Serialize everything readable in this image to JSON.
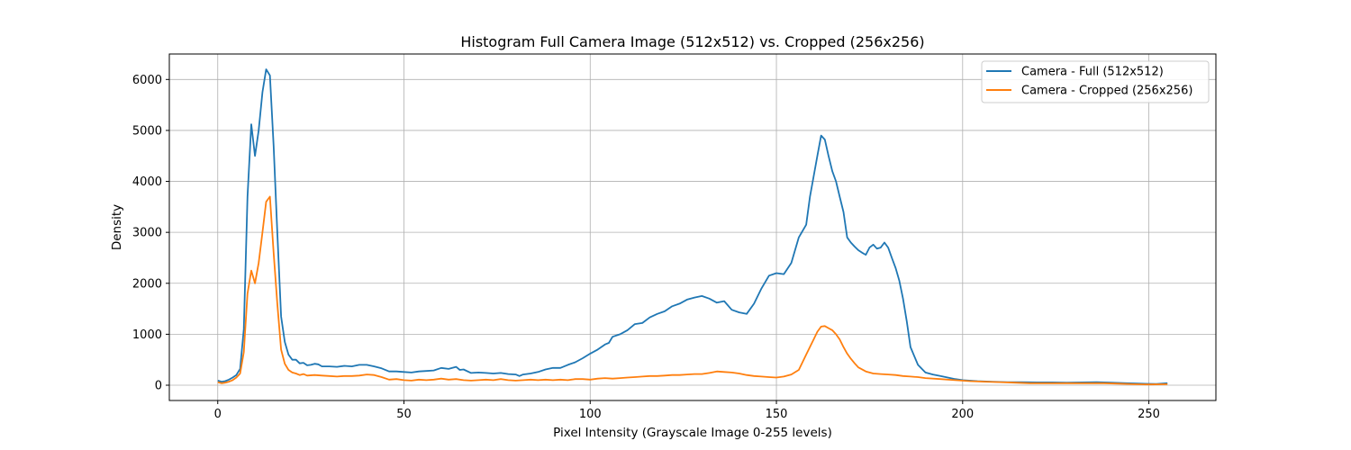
{
  "chart_data": {
    "type": "line",
    "title": "Histogram Full Camera Image (512x512) vs. Cropped (256x256)",
    "xlabel": "Pixel Intensity (Grayscale Image 0-255 levels)",
    "ylabel": "Density",
    "xlim": [
      -13,
      268
    ],
    "ylim": [
      -300,
      6500
    ],
    "xticks": [
      0,
      50,
      100,
      150,
      200,
      250
    ],
    "yticks": [
      0,
      1000,
      2000,
      3000,
      4000,
      5000,
      6000
    ],
    "grid": true,
    "legend_position": "top-right",
    "series": [
      {
        "name": "Camera - Full (512x512)",
        "color": "#1f77b4",
        "points": [
          [
            0,
            90
          ],
          [
            1,
            70
          ],
          [
            2,
            80
          ],
          [
            3,
            110
          ],
          [
            4,
            150
          ],
          [
            5,
            200
          ],
          [
            6,
            320
          ],
          [
            7,
            1100
          ],
          [
            8,
            3700
          ],
          [
            9,
            5120
          ],
          [
            10,
            4500
          ],
          [
            11,
            5000
          ],
          [
            12,
            5750
          ],
          [
            13,
            6200
          ],
          [
            14,
            6080
          ],
          [
            15,
            4700
          ],
          [
            16,
            3000
          ],
          [
            17,
            1350
          ],
          [
            18,
            850
          ],
          [
            19,
            600
          ],
          [
            20,
            500
          ],
          [
            21,
            500
          ],
          [
            22,
            430
          ],
          [
            23,
            440
          ],
          [
            24,
            390
          ],
          [
            25,
            400
          ],
          [
            26,
            420
          ],
          [
            27,
            410
          ],
          [
            28,
            370
          ],
          [
            30,
            370
          ],
          [
            32,
            360
          ],
          [
            34,
            380
          ],
          [
            36,
            370
          ],
          [
            38,
            400
          ],
          [
            40,
            400
          ],
          [
            42,
            370
          ],
          [
            44,
            330
          ],
          [
            46,
            270
          ],
          [
            48,
            270
          ],
          [
            50,
            260
          ],
          [
            52,
            250
          ],
          [
            54,
            270
          ],
          [
            56,
            280
          ],
          [
            58,
            290
          ],
          [
            60,
            340
          ],
          [
            62,
            320
          ],
          [
            64,
            360
          ],
          [
            65,
            300
          ],
          [
            66,
            310
          ],
          [
            68,
            240
          ],
          [
            70,
            250
          ],
          [
            72,
            240
          ],
          [
            74,
            230
          ],
          [
            76,
            240
          ],
          [
            78,
            220
          ],
          [
            80,
            210
          ],
          [
            81,
            180
          ],
          [
            82,
            210
          ],
          [
            84,
            230
          ],
          [
            86,
            260
          ],
          [
            88,
            310
          ],
          [
            90,
            340
          ],
          [
            92,
            340
          ],
          [
            94,
            400
          ],
          [
            96,
            450
          ],
          [
            98,
            530
          ],
          [
            100,
            620
          ],
          [
            102,
            700
          ],
          [
            104,
            800
          ],
          [
            105,
            830
          ],
          [
            106,
            950
          ],
          [
            108,
            1000
          ],
          [
            110,
            1080
          ],
          [
            112,
            1200
          ],
          [
            114,
            1220
          ],
          [
            116,
            1330
          ],
          [
            118,
            1400
          ],
          [
            120,
            1450
          ],
          [
            122,
            1550
          ],
          [
            124,
            1600
          ],
          [
            126,
            1680
          ],
          [
            128,
            1720
          ],
          [
            130,
            1750
          ],
          [
            132,
            1700
          ],
          [
            134,
            1620
          ],
          [
            136,
            1650
          ],
          [
            138,
            1480
          ],
          [
            140,
            1430
          ],
          [
            142,
            1400
          ],
          [
            144,
            1600
          ],
          [
            146,
            1900
          ],
          [
            148,
            2150
          ],
          [
            150,
            2200
          ],
          [
            152,
            2180
          ],
          [
            154,
            2400
          ],
          [
            156,
            2900
          ],
          [
            158,
            3150
          ],
          [
            159,
            3700
          ],
          [
            160,
            4100
          ],
          [
            161,
            4500
          ],
          [
            162,
            4900
          ],
          [
            163,
            4820
          ],
          [
            164,
            4500
          ],
          [
            165,
            4200
          ],
          [
            166,
            4000
          ],
          [
            167,
            3700
          ],
          [
            168,
            3400
          ],
          [
            169,
            2900
          ],
          [
            170,
            2800
          ],
          [
            171,
            2720
          ],
          [
            172,
            2650
          ],
          [
            173,
            2600
          ],
          [
            174,
            2560
          ],
          [
            175,
            2700
          ],
          [
            176,
            2760
          ],
          [
            177,
            2680
          ],
          [
            178,
            2700
          ],
          [
            179,
            2800
          ],
          [
            180,
            2700
          ],
          [
            181,
            2500
          ],
          [
            182,
            2300
          ],
          [
            183,
            2050
          ],
          [
            184,
            1700
          ],
          [
            185,
            1250
          ],
          [
            186,
            750
          ],
          [
            188,
            400
          ],
          [
            190,
            250
          ],
          [
            192,
            210
          ],
          [
            194,
            180
          ],
          [
            196,
            150
          ],
          [
            198,
            120
          ],
          [
            200,
            100
          ],
          [
            204,
            80
          ],
          [
            208,
            70
          ],
          [
            212,
            60
          ],
          [
            216,
            60
          ],
          [
            220,
            55
          ],
          [
            224,
            55
          ],
          [
            228,
            50
          ],
          [
            232,
            55
          ],
          [
            236,
            60
          ],
          [
            240,
            50
          ],
          [
            244,
            40
          ],
          [
            248,
            30
          ],
          [
            252,
            25
          ],
          [
            255,
            40
          ]
        ]
      },
      {
        "name": "Camera - Cropped (256x256)",
        "color": "#ff7f0e",
        "points": [
          [
            0,
            60
          ],
          [
            1,
            40
          ],
          [
            2,
            50
          ],
          [
            3,
            70
          ],
          [
            4,
            100
          ],
          [
            5,
            150
          ],
          [
            6,
            230
          ],
          [
            7,
            650
          ],
          [
            8,
            1800
          ],
          [
            9,
            2250
          ],
          [
            10,
            2000
          ],
          [
            11,
            2400
          ],
          [
            12,
            3000
          ],
          [
            13,
            3600
          ],
          [
            14,
            3700
          ],
          [
            15,
            2600
          ],
          [
            16,
            1600
          ],
          [
            17,
            700
          ],
          [
            18,
            420
          ],
          [
            19,
            300
          ],
          [
            20,
            250
          ],
          [
            21,
            230
          ],
          [
            22,
            200
          ],
          [
            23,
            220
          ],
          [
            24,
            190
          ],
          [
            26,
            200
          ],
          [
            28,
            190
          ],
          [
            30,
            180
          ],
          [
            32,
            170
          ],
          [
            34,
            180
          ],
          [
            36,
            180
          ],
          [
            38,
            190
          ],
          [
            40,
            210
          ],
          [
            42,
            200
          ],
          [
            44,
            160
          ],
          [
            46,
            110
          ],
          [
            48,
            120
          ],
          [
            50,
            100
          ],
          [
            52,
            90
          ],
          [
            54,
            110
          ],
          [
            56,
            100
          ],
          [
            58,
            110
          ],
          [
            60,
            130
          ],
          [
            62,
            110
          ],
          [
            64,
            120
          ],
          [
            66,
            100
          ],
          [
            68,
            90
          ],
          [
            70,
            100
          ],
          [
            72,
            110
          ],
          [
            74,
            100
          ],
          [
            76,
            120
          ],
          [
            78,
            100
          ],
          [
            80,
            90
          ],
          [
            82,
            100
          ],
          [
            84,
            110
          ],
          [
            86,
            100
          ],
          [
            88,
            110
          ],
          [
            90,
            100
          ],
          [
            92,
            110
          ],
          [
            94,
            100
          ],
          [
            96,
            120
          ],
          [
            98,
            120
          ],
          [
            100,
            110
          ],
          [
            102,
            130
          ],
          [
            104,
            140
          ],
          [
            106,
            130
          ],
          [
            108,
            140
          ],
          [
            110,
            150
          ],
          [
            112,
            160
          ],
          [
            114,
            170
          ],
          [
            116,
            180
          ],
          [
            118,
            180
          ],
          [
            120,
            190
          ],
          [
            122,
            200
          ],
          [
            124,
            200
          ],
          [
            126,
            210
          ],
          [
            128,
            220
          ],
          [
            130,
            220
          ],
          [
            132,
            240
          ],
          [
            134,
            270
          ],
          [
            136,
            260
          ],
          [
            138,
            250
          ],
          [
            140,
            230
          ],
          [
            142,
            200
          ],
          [
            144,
            180
          ],
          [
            146,
            170
          ],
          [
            148,
            160
          ],
          [
            150,
            150
          ],
          [
            152,
            170
          ],
          [
            154,
            210
          ],
          [
            156,
            300
          ],
          [
            158,
            600
          ],
          [
            160,
            900
          ],
          [
            161,
            1050
          ],
          [
            162,
            1150
          ],
          [
            163,
            1160
          ],
          [
            164,
            1120
          ],
          [
            165,
            1080
          ],
          [
            166,
            1000
          ],
          [
            167,
            900
          ],
          [
            168,
            750
          ],
          [
            169,
            620
          ],
          [
            170,
            520
          ],
          [
            171,
            430
          ],
          [
            172,
            350
          ],
          [
            174,
            270
          ],
          [
            176,
            230
          ],
          [
            178,
            220
          ],
          [
            180,
            210
          ],
          [
            182,
            200
          ],
          [
            184,
            180
          ],
          [
            186,
            170
          ],
          [
            188,
            160
          ],
          [
            190,
            140
          ],
          [
            194,
            120
          ],
          [
            198,
            100
          ],
          [
            202,
            80
          ],
          [
            206,
            70
          ],
          [
            210,
            60
          ],
          [
            214,
            50
          ],
          [
            218,
            40
          ],
          [
            222,
            40
          ],
          [
            226,
            40
          ],
          [
            230,
            40
          ],
          [
            234,
            40
          ],
          [
            238,
            40
          ],
          [
            242,
            30
          ],
          [
            246,
            20
          ],
          [
            250,
            15
          ],
          [
            255,
            20
          ]
        ]
      }
    ]
  }
}
